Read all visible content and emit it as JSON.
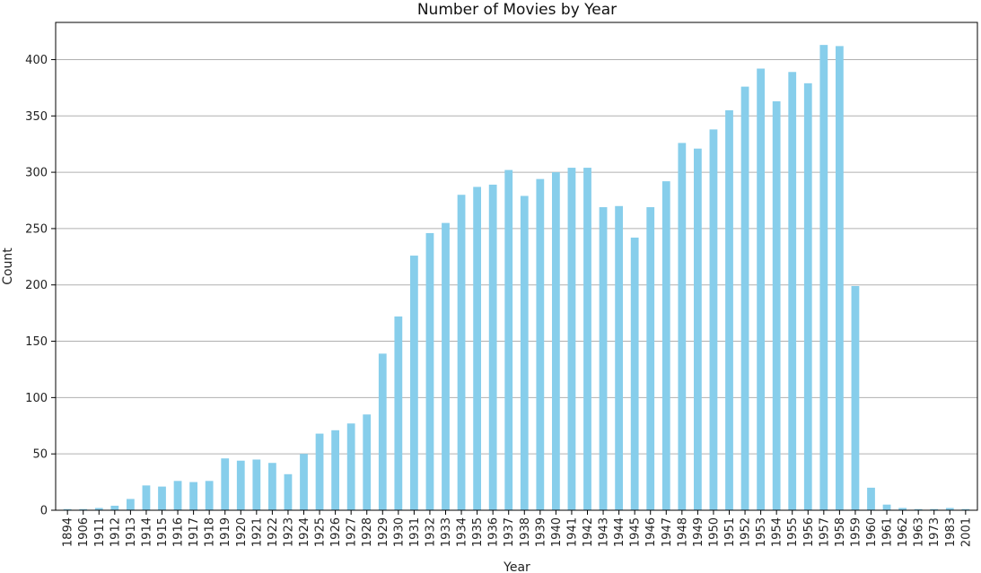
{
  "chart_data": {
    "type": "bar",
    "title": "Number of Movies by Year",
    "xlabel": "Year",
    "ylabel": "Count",
    "ylim": [
      0,
      433
    ],
    "yticks": [
      0,
      50,
      100,
      150,
      200,
      250,
      300,
      350,
      400
    ],
    "grid": "horizontal",
    "bar_color": "#87CEEB",
    "categories": [
      "1894",
      "1906",
      "1911",
      "1912",
      "1913",
      "1914",
      "1915",
      "1916",
      "1917",
      "1918",
      "1919",
      "1920",
      "1921",
      "1922",
      "1923",
      "1924",
      "1925",
      "1926",
      "1927",
      "1928",
      "1929",
      "1930",
      "1931",
      "1932",
      "1933",
      "1934",
      "1935",
      "1936",
      "1937",
      "1938",
      "1939",
      "1940",
      "1941",
      "1942",
      "1943",
      "1944",
      "1945",
      "1946",
      "1947",
      "1948",
      "1949",
      "1950",
      "1951",
      "1952",
      "1953",
      "1954",
      "1955",
      "1956",
      "1957",
      "1958",
      "1959",
      "1960",
      "1961",
      "1962",
      "1963",
      "1973",
      "1983",
      "2001"
    ],
    "values": [
      1,
      1,
      2,
      4,
      10,
      22,
      21,
      26,
      25,
      26,
      46,
      44,
      45,
      42,
      32,
      50,
      68,
      71,
      77,
      85,
      139,
      172,
      226,
      246,
      255,
      280,
      287,
      289,
      302,
      279,
      294,
      300,
      304,
      304,
      269,
      270,
      242,
      269,
      292,
      326,
      321,
      338,
      355,
      376,
      392,
      363,
      389,
      379,
      413,
      412,
      199,
      20,
      5,
      2,
      1,
      1,
      2,
      1
    ]
  }
}
